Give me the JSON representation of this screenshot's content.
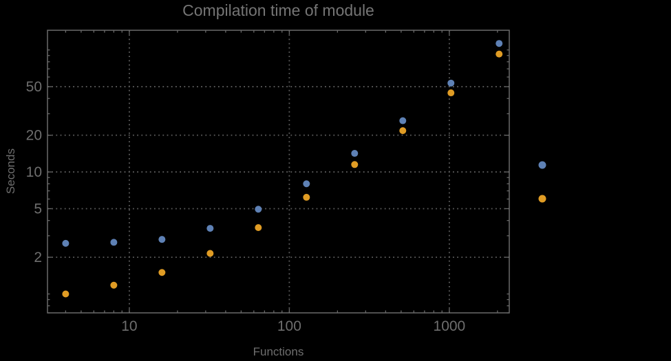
{
  "title": "Compilation time of module",
  "axes": {
    "xlabel": "Functions",
    "ylabel": "Seconds"
  },
  "colors": {
    "background": "#000000",
    "frame": "#6a6a6a",
    "grid": "#5e5e5e",
    "tick_label": "#6e6e6e",
    "axis_label": "#6e6e6e",
    "title": "#757575",
    "series_blue": "#5E81B5",
    "series_orange": "#E09C24"
  },
  "chart_data": {
    "type": "scatter",
    "title": "Compilation time of module",
    "xlabel": "Functions",
    "ylabel": "Seconds",
    "x_scale": "log",
    "y_scale": "log",
    "xlim": [
      3.08,
      2370
    ],
    "ylim": [
      0.7,
      145
    ],
    "grid": "dotted lines at labeled major ticks",
    "x": [
      4,
      8,
      16,
      32,
      64,
      128,
      256,
      512,
      1024,
      2048
    ],
    "series": [
      {
        "name": "blue",
        "color": "#5E81B5",
        "values": [
          2.6,
          2.65,
          2.8,
          3.45,
          4.95,
          8.0,
          14.2,
          26.3,
          53.5,
          113
        ]
      },
      {
        "name": "orange",
        "color": "#E09C24",
        "values": [
          1.0,
          1.18,
          1.5,
          2.15,
          3.5,
          6.2,
          11.5,
          21.8,
          44.5,
          92.5
        ]
      }
    ],
    "x_ticks_labeled": [
      10,
      100,
      1000
    ],
    "y_ticks_labeled": [
      2,
      5,
      10,
      20,
      50
    ],
    "legend": {
      "position": "outside-right",
      "labels_visible": false,
      "marker_colors": [
        "#5E81B5",
        "#E09C24"
      ]
    }
  }
}
